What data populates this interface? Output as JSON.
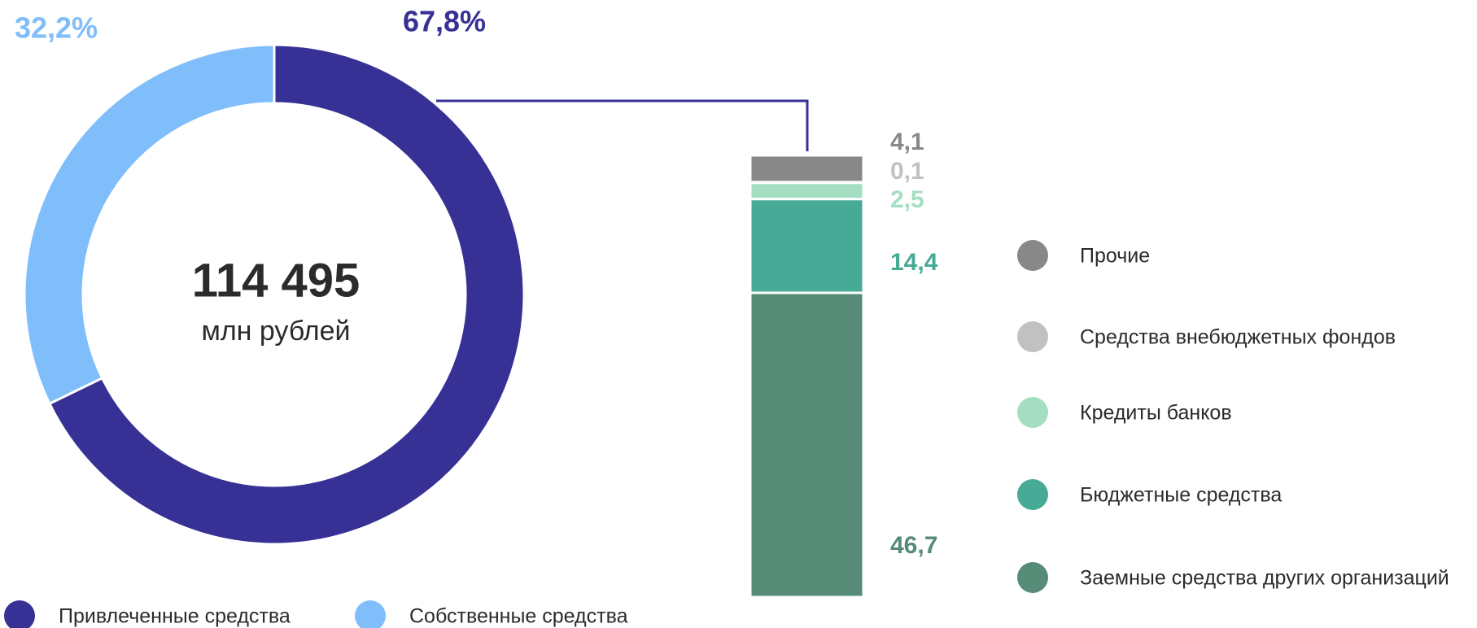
{
  "chart_data": [
    {
      "type": "donut",
      "center_label": "114 495",
      "center_sublabel": "млн рублей",
      "categories": [
        "Привлеченные средства",
        "Собственные средства"
      ],
      "values": [
        67.8,
        32.2
      ],
      "value_labels": [
        "67,8%",
        "32,2%"
      ],
      "colors": [
        "#373195",
        "#80bdfb"
      ],
      "legend": "bottom"
    },
    {
      "type": "stacked_bar",
      "categories": [
        null
      ],
      "series": [
        {
          "name": "Заемные средства других организаций",
          "color": "#568c77",
          "values": [
            46.7
          ],
          "value_labels": [
            "46,7"
          ]
        },
        {
          "name": "Бюджетные средства",
          "color": "#46aa96",
          "values": [
            14.4
          ],
          "value_labels": [
            "14,4"
          ]
        },
        {
          "name": "Кредиты банков",
          "color": "#a4ddc1",
          "values": [
            2.5
          ],
          "value_labels": [
            "2,5"
          ]
        },
        {
          "name": "Средства внебюджетных фондов",
          "color": "#c1c1c1",
          "values": [
            0.1
          ],
          "value_labels": [
            "0,1"
          ]
        },
        {
          "name": "Прочие",
          "color": "#888888",
          "values": [
            4.1
          ],
          "value_labels": [
            "4,1"
          ]
        }
      ],
      "legend": "right"
    }
  ]
}
